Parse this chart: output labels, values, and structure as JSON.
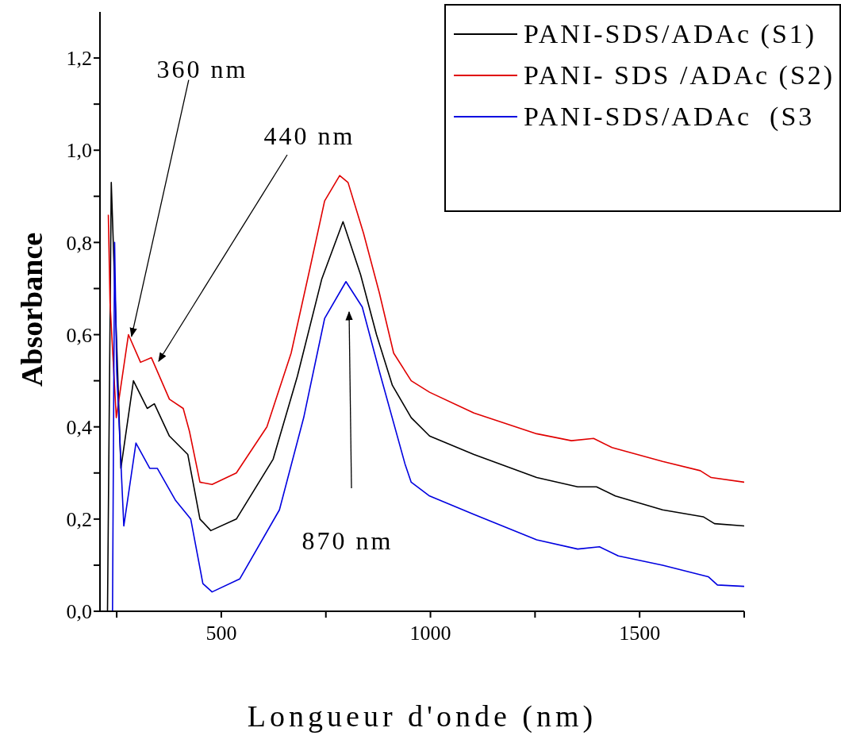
{
  "chart_data": {
    "type": "line",
    "xlabel": "Longueur d'onde (nm)",
    "ylabel": "Absorbance",
    "xlim": [
      210,
      1750
    ],
    "ylim": [
      0,
      1.3
    ],
    "xticks": [
      {
        "value": 250,
        "label": null
      },
      500,
      {
        "value": 750,
        "label": null
      },
      1000,
      {
        "value": 1250,
        "label": null
      },
      1500,
      {
        "value": 1750,
        "label": null
      }
    ],
    "yticks": [
      {
        "value": 0,
        "label": "0,0"
      },
      {
        "value": 0.1,
        "label": null
      },
      {
        "value": 0.2,
        "label": "0,2"
      },
      {
        "value": 0.3,
        "label": null
      },
      {
        "value": 0.4,
        "label": "0,4"
      },
      {
        "value": 0.5,
        "label": null
      },
      {
        "value": 0.6,
        "label": "0,6"
      },
      {
        "value": 0.7,
        "label": null
      },
      {
        "value": 0.8,
        "label": "0,8"
      },
      {
        "value": 0.9,
        "label": null
      },
      {
        "value": 1.0,
        "label": "1,0"
      },
      {
        "value": 1.1,
        "label": null
      },
      {
        "value": 1.2,
        "label": "1,2"
      }
    ],
    "legend": "top right",
    "series": [
      {
        "name": "PANI-SDS/ADAc (S1)",
        "color": "#000000",
        "x": [
          228,
          237,
          260,
          290,
          323,
          340,
          376,
          420,
          449,
          475,
          536,
          624,
          682,
          740,
          791,
          833,
          871,
          909,
          954,
          998,
          1104,
          1254,
          1352,
          1397,
          1442,
          1555,
          1652,
          1679,
          1750
        ],
        "values": [
          0.0,
          0.93,
          0.31,
          0.5,
          0.44,
          0.45,
          0.38,
          0.34,
          0.2,
          0.175,
          0.2,
          0.33,
          0.51,
          0.72,
          0.845,
          0.73,
          0.6,
          0.49,
          0.42,
          0.38,
          0.34,
          0.29,
          0.27,
          0.27,
          0.25,
          0.22,
          0.205,
          0.19,
          0.185
        ]
      },
      {
        "name": "PANI- SDS /ADAc (S2)",
        "color": "#e00000",
        "x": [
          230,
          234,
          249,
          278,
          307,
          333,
          376,
          409,
          424,
          449,
          478,
          536,
          609,
          667,
          711,
          747,
          783,
          803,
          840,
          878,
          912,
          954,
          998,
          1104,
          1254,
          1337,
          1390,
          1434,
          1555,
          1645,
          1671,
          1750
        ],
        "values": [
          0.86,
          0.67,
          0.42,
          0.6,
          0.54,
          0.55,
          0.46,
          0.44,
          0.39,
          0.28,
          0.275,
          0.3,
          0.4,
          0.56,
          0.74,
          0.89,
          0.945,
          0.93,
          0.82,
          0.69,
          0.56,
          0.5,
          0.475,
          0.43,
          0.385,
          0.37,
          0.375,
          0.355,
          0.325,
          0.305,
          0.29,
          0.28
        ]
      },
      {
        "name": "PANI-SDS/ADAc  (S3",
        "color": "#0000e0",
        "x": [
          240,
          245,
          250,
          267,
          296,
          329,
          347,
          391,
          427,
          456,
          478,
          544,
          639,
          697,
          747,
          798,
          837,
          878,
          939,
          954,
          998,
          1104,
          1254,
          1352,
          1404,
          1449,
          1555,
          1664,
          1686,
          1750
        ],
        "values": [
          0.0,
          0.8,
          0.52,
          0.185,
          0.365,
          0.31,
          0.31,
          0.24,
          0.2,
          0.06,
          0.042,
          0.07,
          0.22,
          0.42,
          0.635,
          0.715,
          0.66,
          0.52,
          0.32,
          0.28,
          0.25,
          0.21,
          0.155,
          0.135,
          0.14,
          0.12,
          0.1,
          0.075,
          0.057,
          0.054
        ]
      }
    ],
    "annotations": [
      {
        "text": "360 nm",
        "x": 278,
        "y": 0.6
      },
      "440 nm",
      "870 nm"
    ]
  }
}
